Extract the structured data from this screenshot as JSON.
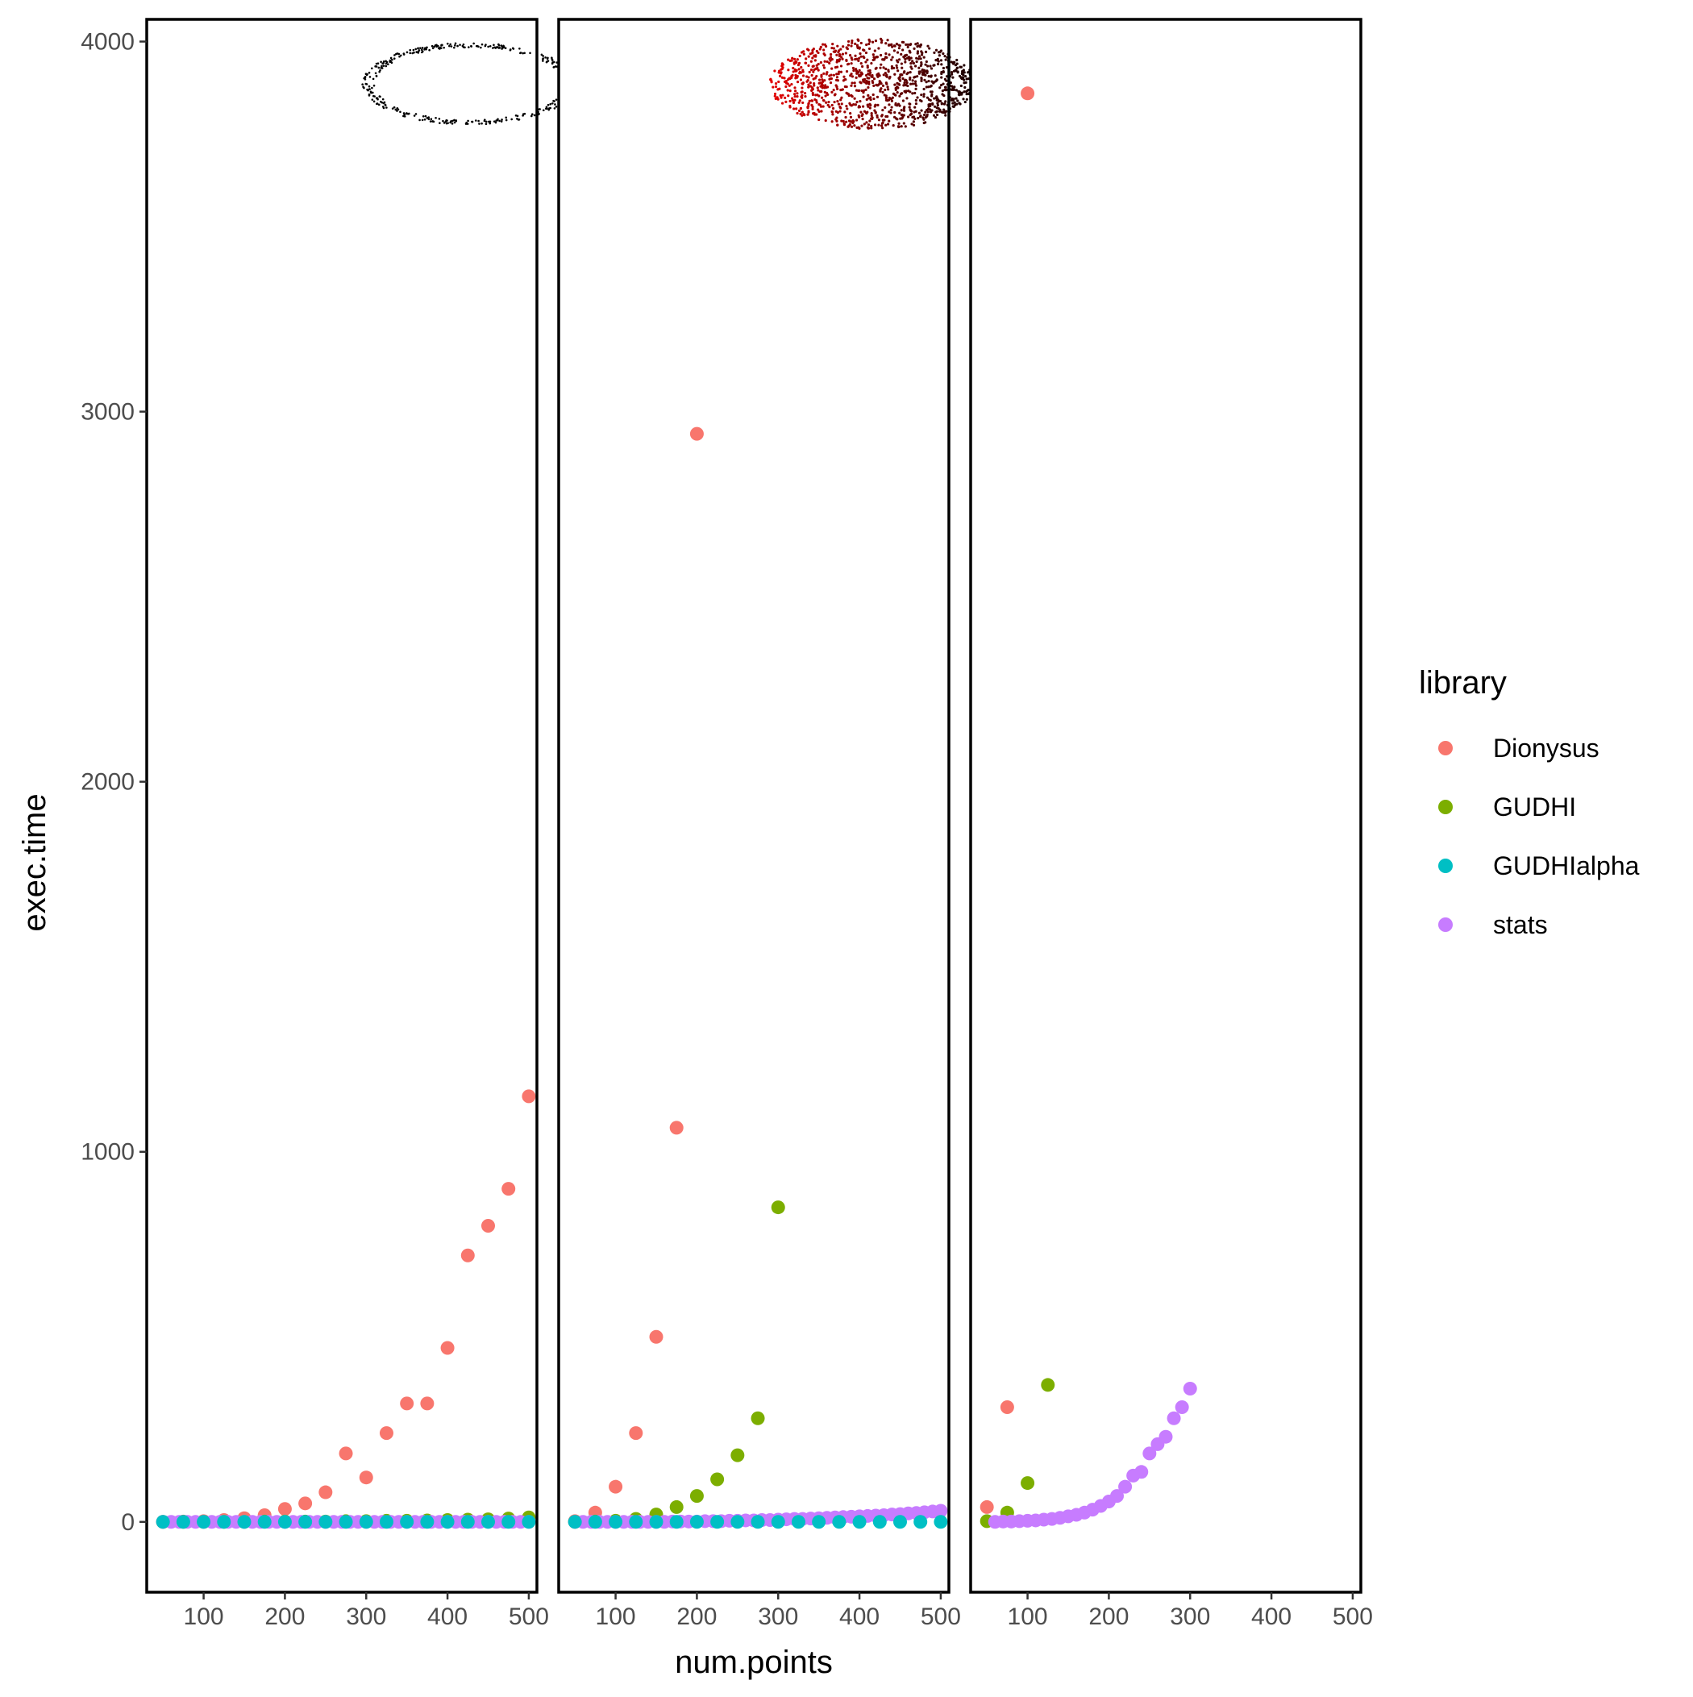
{
  "chart_data": {
    "type": "scatter",
    "facets": 3,
    "xlabel": "num.points",
    "ylabel": "exec.time",
    "xlim": [
      30,
      510
    ],
    "ylim": [
      -190,
      4060
    ],
    "xticks": [
      100,
      200,
      300,
      400,
      500
    ],
    "yticks": [
      0,
      1000,
      2000,
      3000,
      4000
    ],
    "xtick_labels": [
      "100",
      "200",
      "300",
      "400",
      "500"
    ],
    "ytick_labels": [
      "0",
      "1000",
      "2000",
      "3000",
      "4000"
    ],
    "grid": false,
    "legend": {
      "title": "library",
      "position": "right",
      "entries": [
        "Dionysus",
        "GUDHI",
        "GUDHIalpha",
        "stats"
      ]
    },
    "colors": {
      "Dionysus": "#F8766D",
      "GUDHI": "#7CAE00",
      "GUDHIalpha": "#00BFC4",
      "stats": "#C77CFF"
    },
    "panels": [
      {
        "inset": "circle",
        "series": [
          {
            "name": "Dionysus",
            "x": [
              50,
              75,
              100,
              125,
              150,
              175,
              200,
              225,
              250,
              275,
              300,
              325,
              350,
              375,
              400,
              425,
              450,
              475,
              500
            ],
            "y": [
              0,
              1,
              2,
              5,
              10,
              18,
              35,
              50,
              80,
              185,
              120,
              240,
              320,
              320,
              470,
              720,
              800,
              900,
              1150
            ]
          },
          {
            "name": "GUDHI",
            "x": [
              50,
              75,
              100,
              125,
              150,
              175,
              200,
              225,
              250,
              275,
              300,
              325,
              350,
              375,
              400,
              425,
              450,
              475,
              500
            ],
            "y": [
              0,
              0,
              0,
              0,
              0,
              1,
              1,
              1,
              1,
              2,
              2,
              3,
              3,
              4,
              5,
              6,
              7,
              9,
              12
            ]
          },
          {
            "name": "stats",
            "x": [
              50,
              60,
              70,
              80,
              90,
              100,
              110,
              120,
              130,
              140,
              150,
              160,
              170,
              180,
              190,
              200,
              210,
              220,
              230,
              240,
              250,
              260,
              270,
              280,
              290,
              300,
              310,
              320,
              330,
              340,
              350,
              360,
              370,
              380,
              390,
              400,
              410,
              420,
              430,
              440,
              450,
              460,
              470,
              480,
              490,
              500
            ],
            "y": [
              0,
              0,
              0,
              0,
              0,
              0,
              0,
              0,
              0,
              0,
              0,
              0,
              0,
              0,
              0,
              0,
              0,
              0,
              0,
              0,
              0,
              0,
              0,
              0,
              0,
              0,
              0,
              0,
              0,
              0,
              0,
              0,
              0,
              0,
              0,
              0,
              0,
              0,
              0,
              0,
              0,
              0,
              0,
              0,
              0,
              0
            ]
          },
          {
            "name": "GUDHIalpha",
            "x": [
              50,
              75,
              100,
              125,
              150,
              175,
              200,
              225,
              250,
              275,
              300,
              325,
              350,
              375,
              400,
              425,
              450,
              475,
              500
            ],
            "y": [
              0,
              0,
              0,
              0,
              0,
              0,
              0,
              0,
              0,
              0,
              0,
              0,
              0,
              0,
              0,
              0,
              0,
              0,
              0
            ]
          }
        ]
      },
      {
        "inset": "sphere",
        "series": [
          {
            "name": "Dionysus",
            "x": [
              50,
              75,
              100,
              125,
              150,
              175,
              200
            ],
            "y": [
              2,
              25,
              95,
              240,
              500,
              1065,
              2940
            ]
          },
          {
            "name": "GUDHI",
            "x": [
              50,
              75,
              100,
              125,
              150,
              175,
              200,
              225,
              250,
              275,
              300
            ],
            "y": [
              0,
              1,
              3,
              8,
              20,
              40,
              70,
              115,
              180,
              280,
              850
            ]
          },
          {
            "name": "stats",
            "x": [
              50,
              60,
              70,
              80,
              90,
              100,
              110,
              120,
              130,
              140,
              150,
              160,
              170,
              180,
              190,
              200,
              210,
              220,
              230,
              240,
              250,
              260,
              270,
              280,
              290,
              300,
              310,
              320,
              330,
              340,
              350,
              360,
              370,
              380,
              390,
              400,
              410,
              420,
              430,
              440,
              450,
              460,
              470,
              480,
              490,
              500
            ],
            "y": [
              0,
              0,
              0,
              0,
              0,
              0,
              0,
              0,
              0,
              0,
              0,
              0,
              1,
              1,
              1,
              1,
              2,
              2,
              2,
              3,
              3,
              4,
              4,
              5,
              5,
              6,
              7,
              8,
              8,
              9,
              10,
              11,
              12,
              13,
              14,
              15,
              16,
              17,
              18,
              20,
              21,
              23,
              24,
              26,
              28,
              30
            ]
          },
          {
            "name": "GUDHIalpha",
            "x": [
              50,
              75,
              100,
              125,
              150,
              175,
              200,
              225,
              250,
              275,
              300,
              325,
              350,
              375,
              400,
              425,
              450,
              475,
              500
            ],
            "y": [
              0,
              0,
              0,
              0,
              0,
              0,
              0,
              0,
              0,
              0,
              0,
              0,
              0,
              0,
              0,
              0,
              0,
              0,
              0
            ]
          }
        ]
      },
      {
        "inset": "none",
        "series": [
          {
            "name": "Dionysus",
            "x": [
              50,
              75,
              100
            ],
            "y": [
              40,
              310,
              3860
            ]
          },
          {
            "name": "GUDHI",
            "x": [
              50,
              75,
              100,
              125
            ],
            "y": [
              2,
              25,
              105,
              370
            ]
          },
          {
            "name": "stats",
            "x": [
              60,
              70,
              80,
              90,
              100,
              110,
              120,
              130,
              140,
              150,
              160,
              170,
              180,
              190,
              200,
              210,
              220,
              230,
              240,
              250,
              260,
              270,
              280,
              290,
              300
            ],
            "y": [
              0,
              1,
              1,
              2,
              3,
              4,
              6,
              8,
              11,
              15,
              19,
              25,
              33,
              43,
              55,
              70,
              95,
              125,
              135,
              185,
              210,
              230,
              280,
              310,
              360
            ]
          }
        ]
      }
    ]
  }
}
